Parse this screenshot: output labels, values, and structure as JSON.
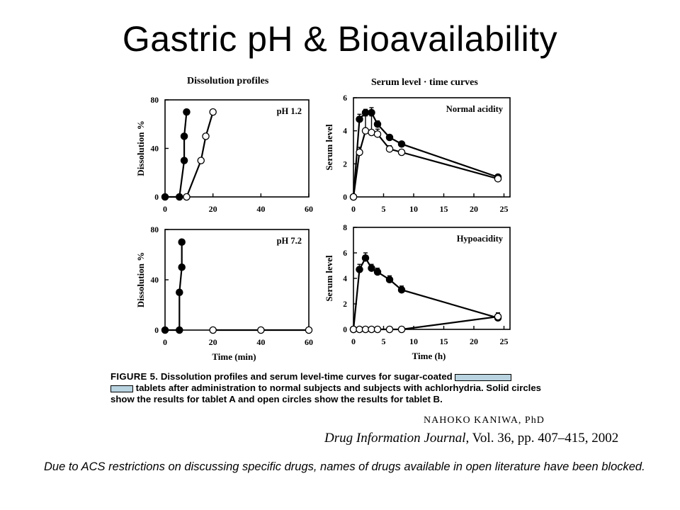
{
  "slide": {
    "title": "Gastric pH & Bioavailability",
    "note": "Due to ACS restrictions on discussing specific drugs, names of drugs available in open literature have been blocked."
  },
  "figure": {
    "column_titles": [
      "Dissolution profiles",
      "Serum level · time curves"
    ],
    "caption_label": "FIGURE 5.",
    "caption_line1": "Dissolution profiles and serum level-time curves for sugar-coated",
    "caption_line2": "tablets after administration to normal subjects and subjects with achlorhydria. Solid circles show the results for tablet A and open circles show the results for tablet B.",
    "author": "NAHOKO KANIWA, PhD",
    "journal_name": "Drug Information Journal",
    "journal_ref": ", Vol. 36, pp. 407–415, 2002"
  },
  "colors": {
    "redaction": "#b9d3e0",
    "ink": "#000000"
  },
  "chart_data": [
    {
      "type": "line",
      "panel_label": "pH 1.2",
      "xlabel": "",
      "ylabel": "Dissolution %",
      "xlim": [
        0,
        60
      ],
      "ylim": [
        0,
        80
      ],
      "xticks": [
        0,
        20,
        40,
        60
      ],
      "yticks": [
        0,
        40,
        80
      ],
      "series": [
        {
          "marker": "filled",
          "x": [
            0,
            6,
            8,
            8,
            9
          ],
          "y": [
            0,
            0,
            30,
            50,
            70
          ]
        },
        {
          "marker": "open",
          "x": [
            9,
            15,
            17,
            20
          ],
          "y": [
            0,
            30,
            50,
            70
          ]
        }
      ]
    },
    {
      "type": "line",
      "panel_label": "Normal acidity",
      "xlabel": "",
      "ylabel": "Serum level",
      "xlim": [
        0,
        26
      ],
      "ylim": [
        0,
        6
      ],
      "xticks": [
        0,
        5,
        10,
        15,
        20,
        25
      ],
      "yticks": [
        0,
        2,
        4,
        6
      ],
      "series": [
        {
          "marker": "filled",
          "x": [
            0,
            1,
            2,
            3,
            4,
            6,
            8,
            24
          ],
          "y": [
            0,
            4.7,
            5.1,
            5.1,
            4.4,
            3.6,
            3.2,
            1.2
          ],
          "err": [
            0,
            0.3,
            0.2,
            0.3,
            0.2,
            0.15,
            0.15,
            0.1
          ]
        },
        {
          "marker": "open",
          "x": [
            0,
            1,
            2,
            3,
            4,
            6,
            8,
            24
          ],
          "y": [
            0,
            2.7,
            4.0,
            3.9,
            3.8,
            2.9,
            2.7,
            1.1
          ],
          "err": [
            0,
            0.3,
            0.9,
            1.0,
            0.3,
            0.2,
            0.1,
            0.1
          ]
        }
      ]
    },
    {
      "type": "line",
      "panel_label": "pH 7.2",
      "xlabel": "Time (min)",
      "ylabel": "Dissolution %",
      "xlim": [
        0,
        60
      ],
      "ylim": [
        0,
        80
      ],
      "xticks": [
        0,
        20,
        40,
        60
      ],
      "yticks": [
        0,
        40,
        80
      ],
      "series": [
        {
          "marker": "filled",
          "x": [
            0,
            6,
            6,
            7,
            7
          ],
          "y": [
            0,
            0,
            30,
            50,
            70
          ]
        },
        {
          "marker": "open",
          "x": [
            20,
            40,
            60
          ],
          "y": [
            0,
            0,
            0
          ]
        }
      ]
    },
    {
      "type": "line",
      "panel_label": "Hypoacidity",
      "xlabel": "Time (h)",
      "ylabel": "Serum level",
      "xlim": [
        0,
        26
      ],
      "ylim": [
        0,
        8
      ],
      "xticks": [
        0,
        5,
        10,
        15,
        20,
        25
      ],
      "yticks": [
        0,
        2,
        4,
        6,
        8
      ],
      "series": [
        {
          "marker": "filled",
          "x": [
            0,
            1,
            2,
            3,
            4,
            6,
            8,
            24
          ],
          "y": [
            0,
            4.7,
            5.6,
            4.8,
            4.5,
            3.9,
            3.1,
            0.9
          ],
          "err": [
            0,
            0.4,
            0.4,
            0.3,
            0.3,
            0.3,
            0.3,
            0.4
          ]
        },
        {
          "marker": "open",
          "x": [
            0,
            1,
            2,
            3,
            4,
            6,
            8,
            24
          ],
          "y": [
            0,
            0,
            0,
            0,
            0,
            0,
            0,
            1.0
          ]
        }
      ]
    }
  ]
}
